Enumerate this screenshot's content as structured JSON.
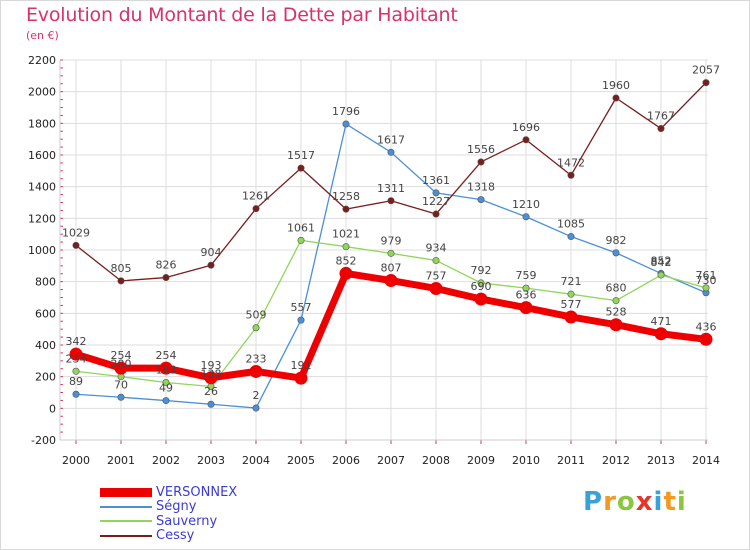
{
  "title": "Evolution du Montant de la Dette par Habitant",
  "subtitle": "(en €)",
  "logo": {
    "text": "Proxiti",
    "letters": [
      {
        "ch": "P",
        "color": "#3aa0d8"
      },
      {
        "ch": "r",
        "color": "#f39a1e"
      },
      {
        "ch": "o",
        "color": "#8cc63f"
      },
      {
        "ch": "x",
        "color": "#e8352a"
      },
      {
        "ch": "i",
        "color": "#3aa0d8"
      },
      {
        "ch": "t",
        "color": "#f39a1e"
      },
      {
        "ch": "i",
        "color": "#8cc63f"
      }
    ]
  },
  "chart_data": {
    "type": "line",
    "title": "Evolution du Montant de la Dette par Habitant",
    "subtitle": "(en €)",
    "xlabel": "",
    "ylabel": "",
    "x": [
      "2000",
      "2001",
      "2002",
      "2003",
      "2004",
      "2005",
      "2006",
      "2007",
      "2008",
      "2009",
      "2010",
      "2011",
      "2012",
      "2013",
      "2014"
    ],
    "ylim": [
      -200,
      2200
    ],
    "yticks": [
      "-200",
      "0",
      "200",
      "400",
      "600",
      "800",
      "1000",
      "1200",
      "1400",
      "1600",
      "1800",
      "2000",
      "2200"
    ],
    "grid": true,
    "legend_position": "bottom-left",
    "series": [
      {
        "name": "VERSONNEX",
        "color": "#ee0000",
        "emphasis": true,
        "values": [
          342,
          254,
          254,
          193,
          233,
          191,
          852,
          807,
          757,
          690,
          636,
          577,
          528,
          471,
          436
        ],
        "labels": [
          "342",
          "254",
          "254",
          "193",
          "233",
          "191",
          "852",
          "807",
          "757",
          "690",
          "636",
          "577",
          "528",
          "471",
          "436"
        ]
      },
      {
        "name": "Ségny",
        "color": "#4b8fd6",
        "emphasis": false,
        "values": [
          89,
          70,
          49,
          26,
          2,
          557,
          1796,
          1617,
          1361,
          1318,
          1210,
          1085,
          982,
          852,
          730
        ],
        "labels": [
          "89",
          "70",
          "49",
          "26",
          "2",
          "557",
          "1796",
          "1617",
          "1361",
          "1318",
          "1210",
          "1085",
          "982",
          "852",
          "730"
        ]
      },
      {
        "name": "Sauverny",
        "color": "#8fd65a",
        "emphasis": false,
        "values": [
          234,
          200,
          163,
          138,
          509,
          1061,
          1021,
          979,
          934,
          792,
          759,
          721,
          680,
          842,
          761
        ],
        "labels": [
          "234",
          "200",
          "163",
          "138",
          "509",
          "1061",
          "1021",
          "979",
          "934",
          "792",
          "759",
          "721",
          "680",
          "842",
          "761"
        ]
      },
      {
        "name": "Cessy",
        "color": "#7a1d1d",
        "emphasis": false,
        "values": [
          1029,
          805,
          826,
          904,
          1261,
          1517,
          1258,
          1311,
          1227,
          1556,
          1696,
          1472,
          1960,
          1767,
          2057
        ],
        "labels": [
          "1029",
          "805",
          "826",
          "904",
          "1261",
          "1517",
          "1258",
          "1311",
          "1227",
          "1556",
          "1696",
          "1472",
          "1960",
          "1767",
          "2057"
        ]
      }
    ]
  }
}
